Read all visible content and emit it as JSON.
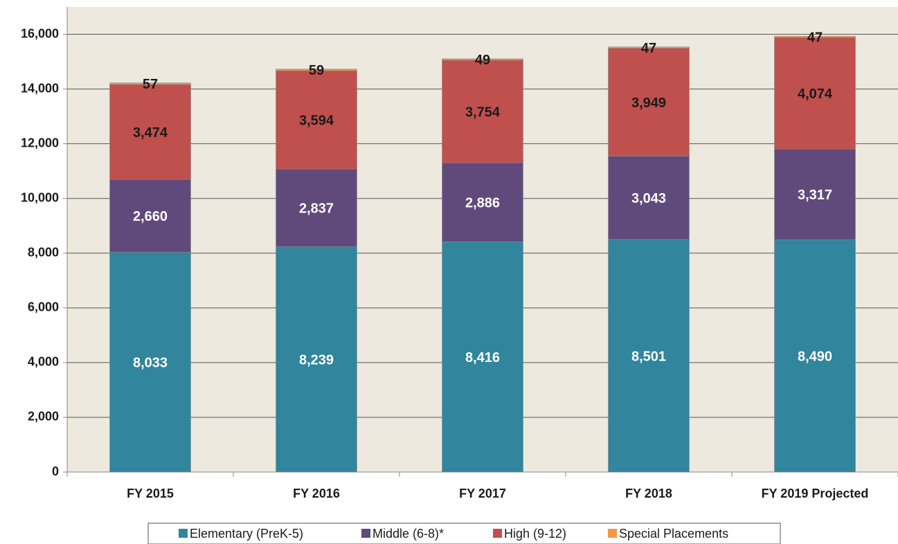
{
  "chart_data": {
    "type": "stacked_bar",
    "categories": [
      "FY 2015",
      "FY 2016",
      "FY 2017",
      "FY 2018",
      "FY 2019 Projected"
    ],
    "series": [
      {
        "name": "Elementary (PreK-5)",
        "color": "#31859c",
        "label_color": "#ffffff",
        "values": [
          8033,
          8239,
          8416,
          8501,
          8490
        ],
        "value_labels": [
          "8,033",
          "8,239",
          "8,416",
          "8,501",
          "8,490"
        ]
      },
      {
        "name": "Middle (6-8)*",
        "color": "#604a7b",
        "label_color": "#ffffff",
        "values": [
          2660,
          2837,
          2886,
          3043,
          3317
        ],
        "value_labels": [
          "2,660",
          "2,837",
          "2,886",
          "3,043",
          "3,317"
        ]
      },
      {
        "name": "High (9-12)",
        "color": "#c0504d",
        "label_color": "#1a1a1a",
        "values": [
          3474,
          3594,
          3754,
          3949,
          4074
        ],
        "value_labels": [
          "3,474",
          "3,594",
          "3,754",
          "3,949",
          "4,074"
        ]
      },
      {
        "name": "Special Placements",
        "color": "#f79646",
        "label_color": "#1a1a1a",
        "values": [
          57,
          59,
          49,
          47,
          47
        ]
      }
    ],
    "ylim": [
      0,
      17000
    ],
    "yticks": [
      0,
      {
        "value": 2000,
        "label": "2,000"
      },
      {
        "value": 4000,
        "label": "4,000"
      },
      {
        "value": 6000,
        "label": "6,000"
      },
      {
        "value": 8000,
        "label": "8,000"
      },
      {
        "value": 10000,
        "label": "10,000"
      },
      {
        "value": 12000,
        "label": "12,000"
      },
      {
        "value": 14000,
        "label": "14,000"
      },
      {
        "value": 16000,
        "label": "16,000"
      }
    ],
    "grid": true,
    "legend": "bottom"
  }
}
